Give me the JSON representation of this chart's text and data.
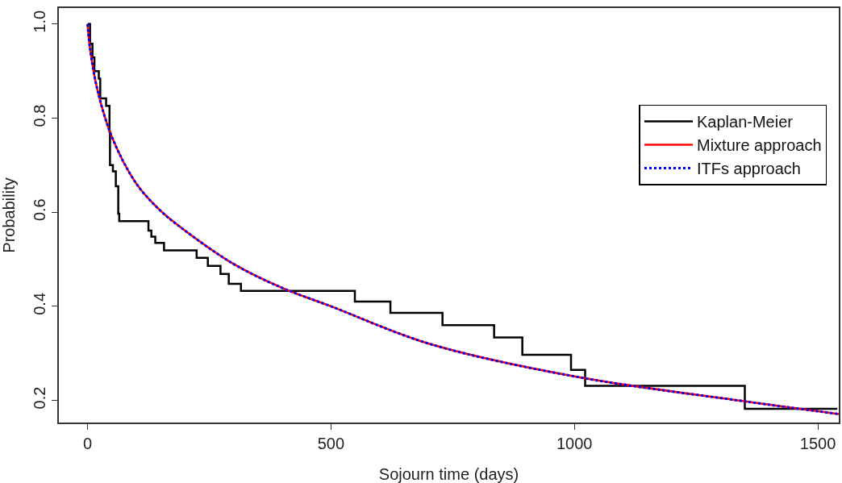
{
  "chart_data": {
    "type": "line",
    "xlabel": "Sojourn time (days)",
    "ylabel": "Probability",
    "xlim": [
      -59,
      1543
    ],
    "ylim": [
      0.153,
      1.034
    ],
    "xticks": [
      0,
      500,
      1000,
      1500
    ],
    "yticks": [
      {
        "value": 0.2,
        "label": "0.2"
      },
      {
        "value": 0.4,
        "label": "0.4"
      },
      {
        "value": 0.6,
        "label": "0.6"
      },
      {
        "value": 0.8,
        "label": "0.8"
      },
      {
        "value": 1.0,
        "label": "1.0"
      }
    ],
    "legend": "right",
    "marker": "none",
    "series": [
      {
        "name": "Kaplan-Meier",
        "type": "step",
        "color": "#000000",
        "line_style": "solid",
        "x": [
          0,
          5,
          10,
          14,
          23,
          26,
          38,
          45,
          46,
          52,
          58,
          63,
          65,
          125,
          131,
          139,
          157,
          224,
          247,
          273,
          290,
          315,
          549,
          622,
          729,
          835,
          893,
          993,
          1022,
          1350,
          1540
        ],
        "values": [
          1.0,
          0.958,
          0.929,
          0.9,
          0.884,
          0.842,
          0.826,
          0.771,
          0.7,
          0.687,
          0.655,
          0.597,
          0.581,
          0.561,
          0.548,
          0.535,
          0.519,
          0.503,
          0.486,
          0.469,
          0.448,
          0.433,
          0.41,
          0.386,
          0.36,
          0.334,
          0.297,
          0.265,
          0.231,
          0.182,
          0.182
        ]
      },
      {
        "name": "Mixture approach",
        "color": "#ff0000",
        "line_style": "solid",
        "x": [
          0,
          5,
          20,
          50,
          100,
          150,
          200,
          300,
          400,
          500,
          700,
          1000,
          1350,
          1543
        ],
        "values": [
          1.0,
          0.948,
          0.861,
          0.76,
          0.661,
          0.603,
          0.561,
          0.49,
          0.439,
          0.4,
          0.321,
          0.251,
          0.198,
          0.171
        ]
      },
      {
        "name": "ITFs approach",
        "color": "#0000ff",
        "line_style": "dotted",
        "x": [
          0,
          5,
          20,
          50,
          100,
          150,
          200,
          300,
          400,
          500,
          700,
          1000,
          1350,
          1543
        ],
        "values": [
          1.0,
          0.948,
          0.861,
          0.76,
          0.661,
          0.603,
          0.561,
          0.49,
          0.439,
          0.4,
          0.321,
          0.251,
          0.198,
          0.171
        ]
      }
    ]
  }
}
